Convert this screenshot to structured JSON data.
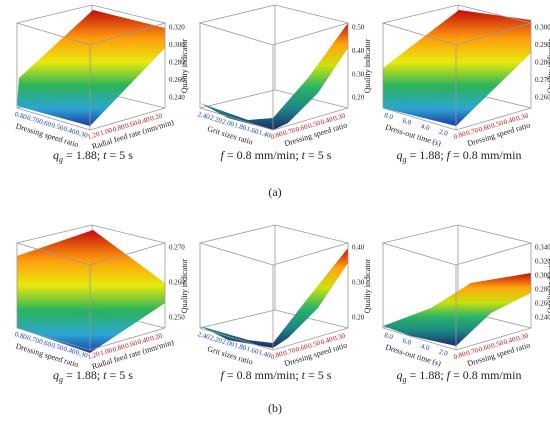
{
  "panels": [
    {
      "z_ticks": [
        "0.320",
        "0.300",
        "0.280",
        "0.260",
        "0.240"
      ],
      "z_label": "Quality indicator",
      "left_ticks": [
        "0.80",
        "0.70",
        "0.60",
        "0.50",
        "0.40",
        "0.30"
      ],
      "left_label": "Dressing speed ratio",
      "right_ticks": [
        "1.20",
        "1.00",
        "0.80",
        "0.60",
        "0.40",
        "0.20"
      ],
      "right_label": "Radial feed rate (mm/min)",
      "caption": [
        "q",
        "g",
        " = 1.88; ",
        "t",
        " = 5 s"
      ]
    },
    {
      "z_ticks": [
        "0.50",
        "0.40",
        "0.30",
        "0.20"
      ],
      "z_label": "Quality indicator",
      "left_ticks": [
        "2.40",
        "2.20",
        "2.00",
        "1.80",
        "1.60",
        "1.40"
      ],
      "left_label": "Grit sizes ratio",
      "right_ticks": [
        "0.80",
        "0.70",
        "0.60",
        "0.50",
        "0.40",
        "0.30"
      ],
      "right_label": "Dressing speed ratio",
      "caption": [
        "f",
        " = 0.8 mm/min; ",
        "t",
        " = 5 s"
      ]
    },
    {
      "z_ticks": [
        "0.300",
        "0.290",
        "0.280",
        "0.270",
        "0.260"
      ],
      "z_label": "Quality indicator",
      "left_ticks": [
        "8.0",
        "6.0",
        "4.0",
        "2.0"
      ],
      "left_label": "Dress-out time (s)",
      "right_ticks": [
        "0.80",
        "0.70",
        "0.60",
        "0.50",
        "0.40",
        "0.30"
      ],
      "right_label": "Dressing speed ratio",
      "caption": [
        "q",
        "g",
        " = 1.88; ",
        "f",
        " = 0.8 mm/min"
      ]
    },
    {
      "z_ticks": [
        "0.270",
        "0.260",
        "0.250"
      ],
      "z_label": "Quality indicator",
      "left_ticks": [
        "0.80",
        "0.70",
        "0.60",
        "0.50",
        "0.40",
        "0.30"
      ],
      "left_label": "Dressing speed ratio",
      "right_ticks": [
        "1.20",
        "1.00",
        "0.80",
        "0.60",
        "0.40",
        "0.20"
      ],
      "right_label": "Radial feed rate (mm/min)",
      "caption": [
        "q",
        "g",
        " = 1.88; ",
        "t",
        " = 5 s"
      ]
    },
    {
      "z_ticks": [
        "0.40",
        "0.30",
        "0.20"
      ],
      "z_label": "Quality indicator",
      "left_ticks": [
        "2.40",
        "2.20",
        "2.00",
        "1.80",
        "1.60",
        "1.40"
      ],
      "left_label": "Grit sizes ratio",
      "right_ticks": [
        "0.80",
        "0.70",
        "0.60",
        "0.50",
        "0.40",
        "0.30"
      ],
      "right_label": "Dressing speed ratio",
      "caption": [
        "f",
        " = 0.8 mm/min; ",
        "t",
        " = 5 s"
      ]
    },
    {
      "z_ticks": [
        "0.340",
        "0.320",
        "0.300",
        "0.280",
        "0.260",
        "0.240"
      ],
      "z_label": "Quality indicator",
      "left_ticks": [
        "8.0",
        "6.0",
        "4.0",
        "2.0"
      ],
      "left_label": "Dress-out time (s)",
      "right_ticks": [
        "0.80",
        "0.70",
        "0.60",
        "0.50",
        "0.40",
        "0.30"
      ],
      "right_label": "Dressing speed ratio",
      "caption": [
        "q",
        "g",
        " = 1.88; ",
        "f",
        " = 0.8 mm/min"
      ]
    }
  ],
  "row_labels": [
    "(a)",
    "(b)"
  ]
}
